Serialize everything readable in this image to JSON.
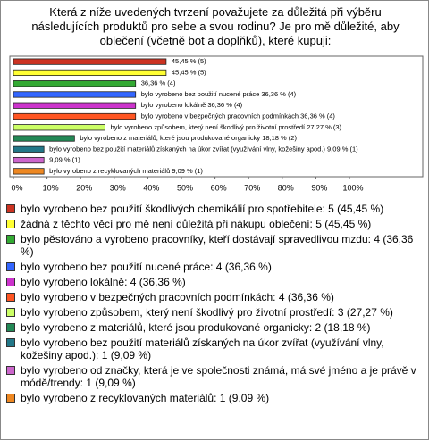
{
  "chart_data": {
    "type": "bar",
    "orientation": "horizontal",
    "title": "Která z níže uvedených tvrzení považujete za důležitá při výběru následujících produktů pro sebe a svou rodinu? Je pro mě důležité, aby oblečení (včetně bot a doplňků), které kupuji:",
    "categories": [
      "bylo vyrobeno bez použití škodlivých chemikálií pro spotřebitele: 5 (45,45 %)",
      "žádná z těchto věcí pro mě není důležitá při nákupu oblečení: 5 (45,45 %)",
      "bylo pěstováno a vyrobeno pracovníky, kteří dostávají spravedlivou mzdu: 4 (36,36 %)",
      "bylo vyrobeno bez použití nucené práce: 4 (36,36 %)",
      "bylo vyrobeno lokálně: 4 (36,36 %)",
      "bylo vyrobeno v bezpečných pracovních podmínkách: 4 (36,36 %)",
      "bylo vyrobeno způsobem, který není škodlivý pro životní prostředí: 3 (27,27 %)",
      "bylo vyrobeno z materiálů, které jsou produkované organicky: 2 (18,18 %)",
      "bylo vyrobeno bez použití materiálů získaných na úkor zvířat (využívání vlny, kožešiny apod.): 1 (9,09 %)",
      "bylo vyrobeno od značky, která je ve společnosti známá, má své jméno a je právě v módě/trendy: 1 (9,09 %)",
      "bylo vyrobeno z recyklovaných materiálů: 1 (9,09 %)"
    ],
    "values": [
      45.45,
      45.45,
      36.36,
      36.36,
      36.36,
      36.36,
      27.27,
      18.18,
      9.09,
      9.09,
      9.09
    ],
    "value_labels": [
      "45,45 % (5)",
      "45,45 % (5)",
      "36,36 % (4)",
      "bylo vyrobeno bez použití nucené práce 36,36 % (4)",
      "bylo vyrobeno lokálně 36,36 % (4)",
      "bylo vyrobeno v bezpečných pracovních podmínkách 36,36 % (4)",
      "bylo vyrobeno způsobem, který není škodlivý pro životní prostředí 27,27 % (3)",
      "bylo vyrobeno z materiálů, které jsou produkované organicky 18,18 % (2)",
      "bylo vyrobeno bez použití materiálů získaných na úkor zvířat (využívání vlny, kožešiny apod.) 9,09 % (1)",
      "9,09 % (1)",
      "bylo vyrobeno z recyklovaných materiálů 9,09 % (1)"
    ],
    "colors": [
      "#cc3322",
      "#ffff33",
      "#33aa33",
      "#3366ff",
      "#cc33cc",
      "#ff5522",
      "#ccff66",
      "#228855",
      "#227788",
      "#cc66cc",
      "#ee8822"
    ],
    "xlim": [
      0,
      100
    ],
    "xticks": [
      {
        "value": 0,
        "label": "0%"
      },
      {
        "value": 10,
        "label": "10%"
      },
      {
        "value": 20,
        "label": "20%"
      },
      {
        "value": 30,
        "label": "30%"
      },
      {
        "value": 40,
        "label": "40%"
      },
      {
        "value": 50,
        "label": "50%"
      },
      {
        "value": 60,
        "label": "60%"
      },
      {
        "value": 70,
        "label": "70%"
      },
      {
        "value": 80,
        "label": "80%"
      },
      {
        "value": 90,
        "label": "90%"
      },
      {
        "value": 100,
        "label": "100%"
      }
    ],
    "grid": false
  }
}
